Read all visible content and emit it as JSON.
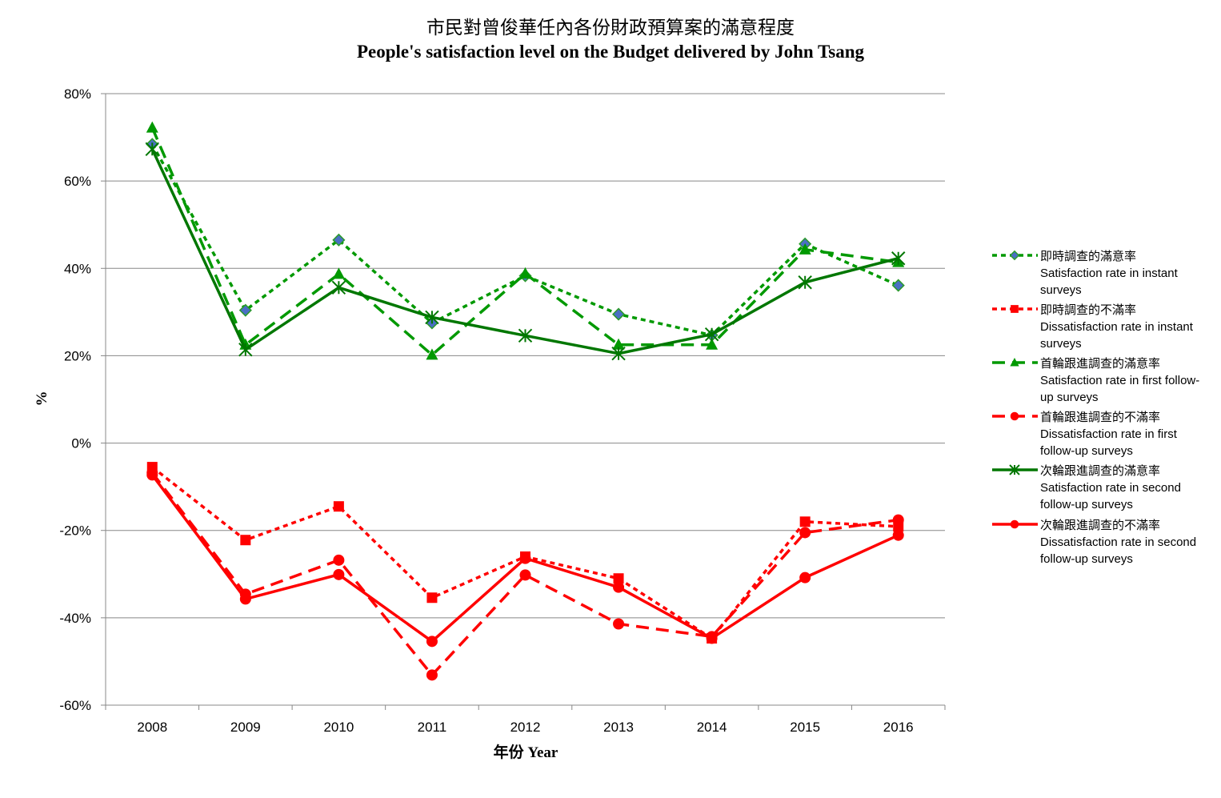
{
  "chart_data": {
    "type": "line",
    "title": "市民對曾俊華任內各份財政預算案的滿意程度",
    "subtitle": "People's satisfaction level on the Budget delivered by John Tsang",
    "xlabel": "年份 Year",
    "ylabel": "%",
    "ylim": [
      -60,
      80
    ],
    "yticks": [
      -60,
      -40,
      -20,
      0,
      20,
      40,
      60,
      80
    ],
    "ytick_labels": [
      "-60%",
      "-40%",
      "-20%",
      "0%",
      "20%",
      "40%",
      "60%",
      "80%"
    ],
    "categories": [
      "2008",
      "2009",
      "2010",
      "2011",
      "2012",
      "2013",
      "2014",
      "2015",
      "2016"
    ],
    "grid": true,
    "legend_position": "right",
    "series": [
      {
        "name_zh": "即時調查的滿意率",
        "name_en": "Satisfaction rate in instant surveys",
        "color": "#009900",
        "dash": "short",
        "marker": "diamond",
        "values": [
          68.4,
          30.4,
          46.5,
          27.5,
          38.3,
          29.5,
          24.7,
          45.6,
          36.1
        ]
      },
      {
        "name_zh": "即時調查的不滿率",
        "name_en": "Dissatisfaction rate in instant surveys",
        "color": "#ff0000",
        "dash": "short",
        "marker": "square",
        "values": [
          -5.5,
          -22.2,
          -14.5,
          -35.4,
          -26.0,
          -31.0,
          -44.7,
          -18.0,
          -19.1
        ]
      },
      {
        "name_zh": "首輪跟進調查的滿意率",
        "name_en": "Satisfaction rate in first follow-up surveys",
        "color": "#009900",
        "dash": "long",
        "marker": "triangle",
        "values": [
          72.2,
          22.5,
          38.7,
          20.2,
          38.8,
          22.5,
          22.5,
          44.3,
          41.4
        ]
      },
      {
        "name_zh": "首輪跟進調查的不滿率",
        "name_en": "Dissatisfaction rate in first follow-up surveys",
        "color": "#ff0000",
        "dash": "long",
        "marker": "circle",
        "values": [
          -6.8,
          -34.6,
          -26.8,
          -53.1,
          -30.2,
          -41.4,
          -44.3,
          -20.5,
          -17.6
        ]
      },
      {
        "name_zh": "次輪跟進調查的滿意率",
        "name_en": "Satisfaction rate in second follow-up surveys",
        "color": "#007700",
        "dash": "solid",
        "marker": "asterisk",
        "values": [
          67.3,
          21.4,
          35.6,
          28.8,
          24.6,
          20.5,
          24.9,
          36.8,
          42.3
        ]
      },
      {
        "name_zh": "次輪跟進調查的不滿率",
        "name_en": "Dissatisfaction rate in second follow-up surveys",
        "color": "#ff0000",
        "dash": "solid",
        "marker": "circle",
        "values": [
          -7.3,
          -35.7,
          -30.1,
          -45.4,
          -26.4,
          -33.0,
          -44.7,
          -30.8,
          -21.1
        ]
      }
    ],
    "legend_lines": [
      [
        "即時調查的滿意率",
        "Satisfaction rate in instant",
        "surveys"
      ],
      [
        "即時調查的不滿率",
        "Dissatisfaction rate in instant",
        "surveys"
      ],
      [
        "首輪跟進調查的滿意率",
        "Satisfaction rate in first follow-",
        "up surveys"
      ],
      [
        "首輪跟進調查的不滿率",
        "Dissatisfaction rate in first",
        "follow-up surveys"
      ],
      [
        "次輪跟進調查的滿意率",
        "Satisfaction rate in second",
        "follow-up surveys"
      ],
      [
        "次輪跟進調查的不滿率",
        "Dissatisfaction rate in second",
        "follow-up surveys"
      ]
    ]
  }
}
